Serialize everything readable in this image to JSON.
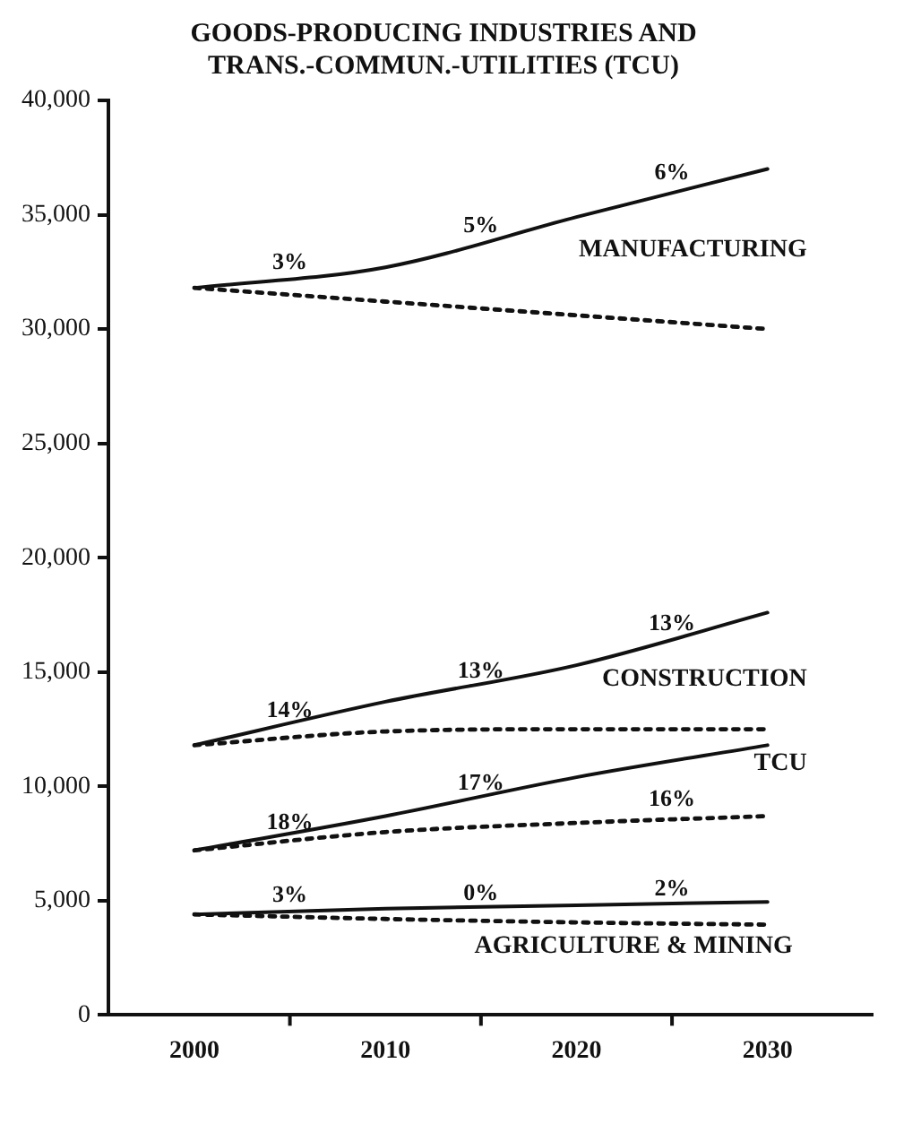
{
  "chart_data": {
    "type": "line",
    "title": "GOODS-PRODUCING INDUSTRIES AND TRANS.-COMMUN.-UTILITIES (TCU)",
    "x": [
      2000,
      2010,
      2020,
      2030
    ],
    "xlim": [
      1995.5,
      2035.5
    ],
    "xticks": [
      2000,
      {
        "value": 2005,
        "label": null
      },
      2010,
      {
        "value": 2015,
        "label": null
      },
      2020,
      {
        "value": 2025,
        "label": null
      },
      2030
    ],
    "ylim": [
      0,
      40000
    ],
    "yticks": [
      {
        "value": 0,
        "label": "0"
      },
      {
        "value": 5000,
        "label": "5,000"
      },
      {
        "value": 10000,
        "label": "10,000"
      },
      {
        "value": 15000,
        "label": "15,000"
      },
      {
        "value": 20000,
        "label": "20,000"
      },
      {
        "value": 25000,
        "label": "25,000"
      },
      {
        "value": 30000,
        "label": "30,000"
      },
      {
        "value": 35000,
        "label": "35,000"
      },
      {
        "value": 40000,
        "label": "40,000"
      }
    ],
    "series": [
      {
        "name": "MANUFACTURING",
        "color": "#111111",
        "line_style": "solid",
        "values": [
          31800,
          32700,
          34900,
          37000
        ]
      },
      {
        "color": "#111111",
        "line_style": "dashed",
        "values": [
          31800,
          31200,
          30600,
          30000
        ]
      },
      {
        "name": "CONSTRUCTION",
        "color": "#111111",
        "line_style": "solid",
        "values": [
          11800,
          13700,
          15300,
          17600
        ]
      },
      {
        "color": "#111111",
        "line_style": "dashed",
        "values": [
          11800,
          12400,
          12500,
          12500
        ]
      },
      {
        "name": "TCU",
        "color": "#111111",
        "line_style": "solid",
        "values": [
          7200,
          8700,
          10400,
          11800
        ]
      },
      {
        "color": "#111111",
        "line_style": "dashed",
        "values": [
          7200,
          8000,
          8400,
          8700
        ]
      },
      {
        "name": "AGRICULTURE & MINING",
        "color": "#111111",
        "line_style": "solid",
        "values": [
          4400,
          4650,
          4800,
          4950
        ]
      },
      {
        "color": "#111111",
        "line_style": "dashed",
        "values": [
          4400,
          4200,
          4050,
          3950
        ]
      }
    ],
    "annotations": [
      {
        "text": "3%",
        "x": 2005,
        "y": 32400
      },
      {
        "text": "5%",
        "x": 2015,
        "y": 34000
      },
      {
        "text": "6%",
        "x": 2025,
        "y": 36300
      },
      {
        "text": "14%",
        "x": 2005,
        "y": 12800
      },
      {
        "text": "13%",
        "x": 2015,
        "y": 14500
      },
      {
        "text": "13%",
        "x": 2025,
        "y": 16600
      },
      {
        "text": "18%",
        "x": 2005,
        "y": 7900
      },
      {
        "text": "17%",
        "x": 2015,
        "y": 9600
      },
      {
        "text": "16%",
        "x": 2025,
        "y": 8900
      },
      {
        "text": "3%",
        "x": 2005,
        "y": 4700
      },
      {
        "text": "0%",
        "x": 2015,
        "y": 4800
      },
      {
        "text": "2%",
        "x": 2025,
        "y": 5000
      }
    ],
    "grid": false,
    "legend": false,
    "marker": "none"
  }
}
